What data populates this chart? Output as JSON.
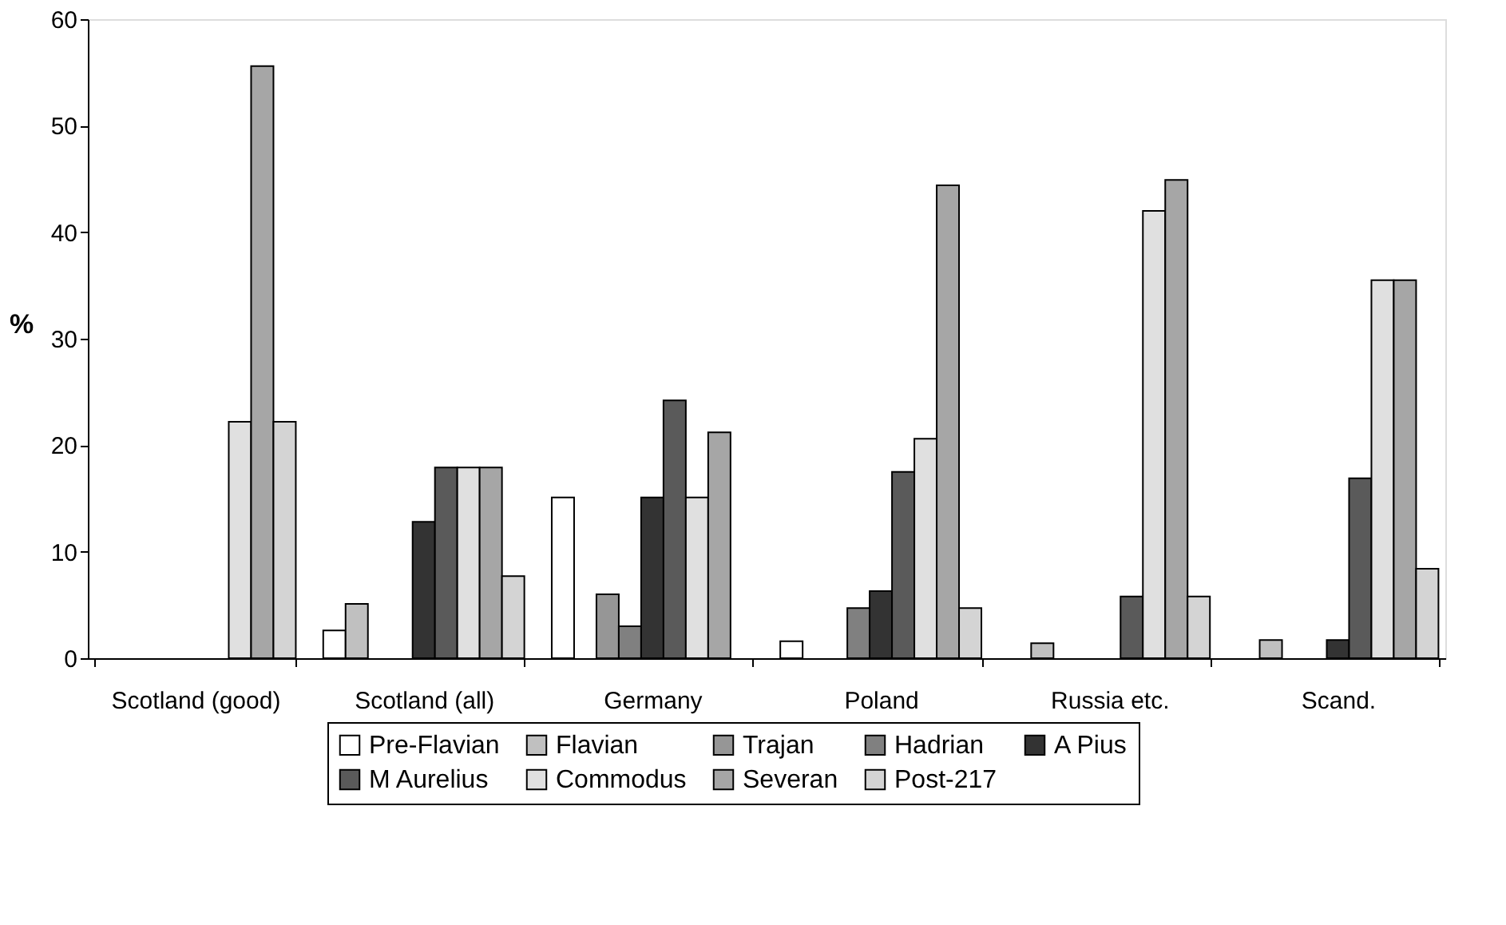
{
  "chart_data": {
    "type": "bar",
    "ylabel": "%",
    "categories": [
      "Scotland (good)",
      "Scotland (all)",
      "Germany",
      "Poland",
      "Russia etc.",
      "Scand."
    ],
    "ylim": [
      0,
      60
    ],
    "yticks": [
      0,
      10,
      20,
      30,
      40,
      50,
      60
    ],
    "grid": false,
    "legend": "bottom",
    "series": [
      {
        "name": "Pre-Flavian",
        "color": "#ffffff",
        "values": [
          null,
          2.6,
          15.1,
          1.6,
          null,
          null
        ]
      },
      {
        "name": "Flavian",
        "color": "#c0c0c0",
        "values": [
          null,
          5.1,
          null,
          null,
          1.4,
          1.7
        ]
      },
      {
        "name": "Trajan",
        "color": "#969696",
        "values": [
          null,
          null,
          6.0,
          null,
          null,
          null
        ]
      },
      {
        "name": "Hadrian",
        "color": "#808080",
        "values": [
          null,
          null,
          3.0,
          4.7,
          null,
          null
        ]
      },
      {
        "name": "A Pius",
        "color": "#333333",
        "values": [
          null,
          12.8,
          15.1,
          6.3,
          null,
          1.7
        ]
      },
      {
        "name": "M Aurelius",
        "color": "#5a5a5a",
        "values": [
          null,
          17.9,
          24.2,
          17.5,
          5.8,
          16.9
        ]
      },
      {
        "name": "Commodus",
        "color": "#e0e0e0",
        "values": [
          22.2,
          17.9,
          15.1,
          20.6,
          42.0,
          35.5
        ]
      },
      {
        "name": "Severan",
        "color": "#a6a6a6",
        "values": [
          55.6,
          17.9,
          21.2,
          44.4,
          44.9,
          35.5
        ]
      },
      {
        "name": "Post-217",
        "color": "#d4d4d4",
        "values": [
          22.2,
          7.7,
          null,
          4.7,
          5.8,
          8.4
        ]
      }
    ]
  }
}
